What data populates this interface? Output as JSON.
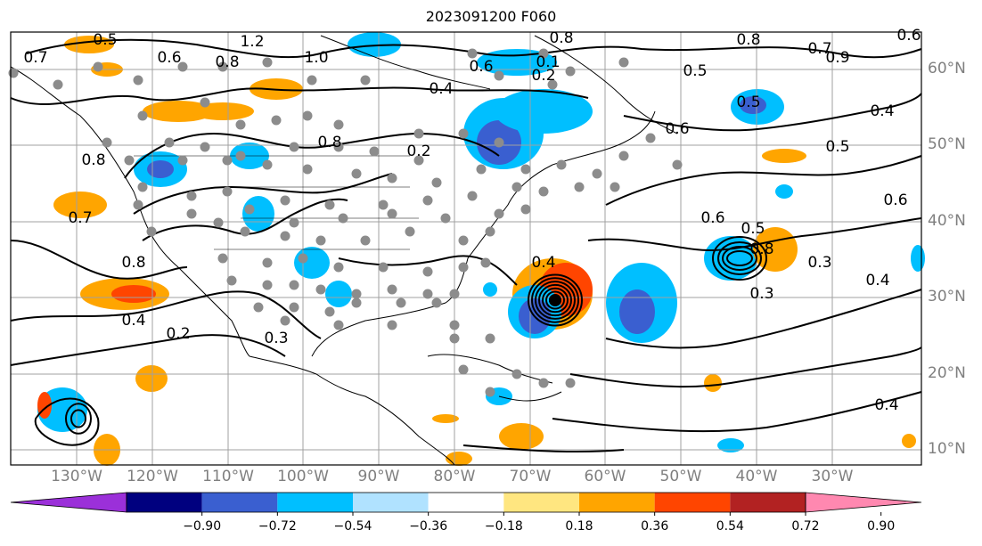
{
  "title": "2023091200 F060",
  "lat_labels": [
    "60°N",
    "50°N",
    "40°N",
    "30°N",
    "20°N",
    "10°N"
  ],
  "lon_labels": [
    "130°W",
    "120°W",
    "110°W",
    "100°W",
    "90°W",
    "80°W",
    "70°W",
    "60°W",
    "50°W",
    "40°W",
    "30°W"
  ],
  "colorbar": {
    "ticks": [
      "−0.90",
      "−0.72",
      "−0.54",
      "−0.36",
      "−0.18",
      "0.18",
      "0.36",
      "0.54",
      "0.72",
      "0.90"
    ],
    "colors": [
      "#9b30d9",
      "#00007f",
      "#3a5fd0",
      "#00bfff",
      "#b0e2ff",
      "#ffffff",
      "#ffe680",
      "#ffa500",
      "#ff4500",
      "#b22222",
      "#ff88b0"
    ]
  },
  "contour_labels": [
    "0.7",
    "0.5",
    "1.2",
    "0.6",
    "0.8",
    "1.0",
    "0.8",
    "0.6",
    "0.2",
    "0.8",
    "0.1",
    "0.8",
    "0.6",
    "0.9",
    "0.7",
    "0.5",
    "0.5",
    "0.6",
    "0.5",
    "0.4",
    "0.7",
    "0.8",
    "0.4",
    "0.6",
    "0.5",
    "0.6",
    "0.3",
    "0.4",
    "0.4",
    "0.8",
    "0.4",
    "0.2",
    "0.3",
    "0.8",
    "0.3",
    "0.4",
    "0.2"
  ]
}
